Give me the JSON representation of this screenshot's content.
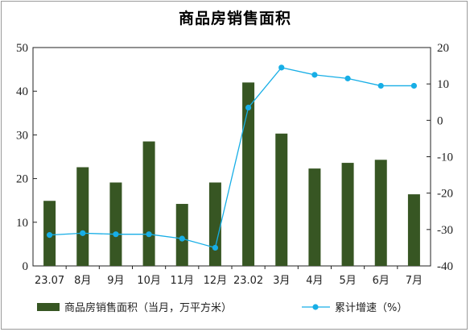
{
  "title": "商品房销售面积",
  "chart_data": {
    "type": "bar",
    "categories": [
      "23.07",
      "8月",
      "9月",
      "10月",
      "11月",
      "12月",
      "23.02",
      "3月",
      "4月",
      "5月",
      "6月",
      "7月"
    ],
    "series": [
      {
        "name": "商品房销售面积（当月，万平方米）",
        "type": "bar",
        "axis": "left",
        "values": [
          14.9,
          22.6,
          19.1,
          28.5,
          14.2,
          19.1,
          42.0,
          30.3,
          22.3,
          23.6,
          24.3,
          16.4
        ]
      },
      {
        "name": "累计增速（%）",
        "type": "line",
        "axis": "right",
        "values": [
          -31.5,
          -31.0,
          -31.3,
          -31.3,
          -32.5,
          -35.0,
          3.5,
          14.5,
          12.5,
          11.5,
          9.5,
          9.5
        ]
      }
    ],
    "y_left": {
      "lim": [
        0,
        50
      ],
      "ticks": [
        0,
        10,
        20,
        30,
        40,
        50
      ]
    },
    "y_right": {
      "lim": [
        -40,
        20
      ],
      "ticks": [
        -40,
        -30,
        -20,
        -10,
        0,
        10,
        20
      ]
    },
    "colors": {
      "bar": "#375623",
      "line": "#17aee6"
    },
    "legend_position": "bottom",
    "grid": false
  }
}
